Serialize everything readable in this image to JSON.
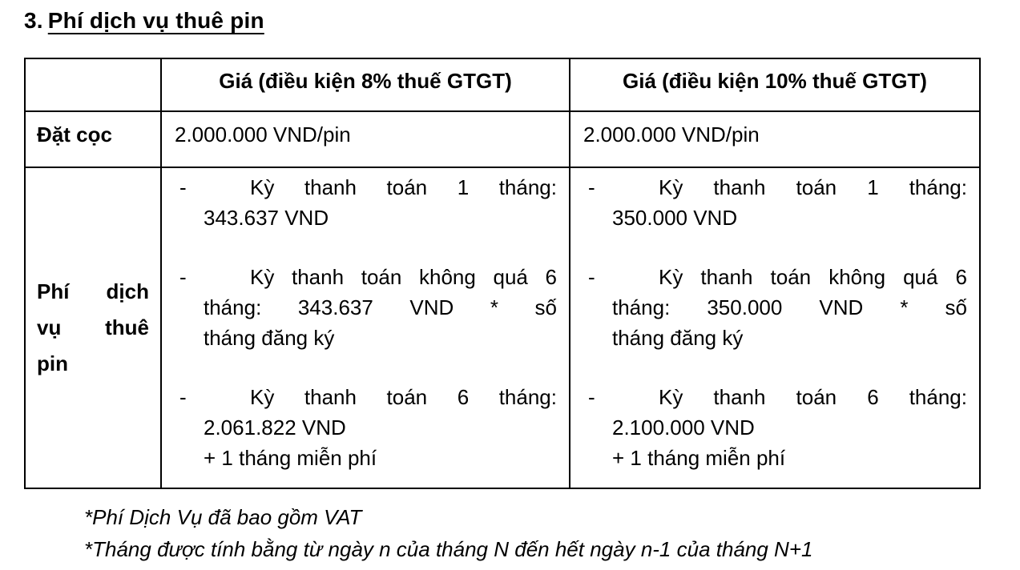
{
  "title": {
    "number": "3.",
    "text": "Phí dịch vụ thuê pin"
  },
  "table": {
    "bullet_marker": "-",
    "header": {
      "corner": "",
      "col_8": "Giá (điều kiện 8% thuế GTGT)",
      "col_10": "Giá (điều kiện 10% thuế GTGT)"
    },
    "deposit_row": {
      "label": "Đặt cọc",
      "price_8": "2.000.000 VND/pin",
      "price_10": "2.000.000 VND/pin"
    },
    "service_row": {
      "label": "Phí dịch vụ thuê pin",
      "label_lines": [
        "Phí dịch",
        "vụ thuê",
        "pin"
      ],
      "bullets_8": [
        {
          "lines": [
            "Kỳ thanh toán 1 tháng:",
            "343.637 VND"
          ]
        },
        {
          "lines": [
            "Kỳ thanh toán không quá 6",
            "tháng: 343.637 VND * số",
            "tháng đăng ký"
          ]
        },
        {
          "lines": [
            "Kỳ thanh toán 6 tháng:",
            "2.061.822 VND",
            "+ 1 tháng miễn phí"
          ]
        }
      ],
      "bullets_10": [
        {
          "lines": [
            "Kỳ thanh toán 1 tháng:",
            "350.000 VND"
          ]
        },
        {
          "lines": [
            "Kỳ thanh toán không quá 6",
            "tháng: 350.000 VND * số",
            "tháng đăng ký"
          ]
        },
        {
          "lines": [
            "Kỳ thanh toán 6 tháng:",
            "2.100.000 VND",
            "+ 1 tháng miễn phí"
          ]
        }
      ]
    }
  },
  "footnotes": [
    "*Phí Dịch Vụ đã bao gồm VAT",
    "*Tháng được tính bằng từ ngày n của tháng N đến hết ngày n-1 của tháng N+1"
  ]
}
